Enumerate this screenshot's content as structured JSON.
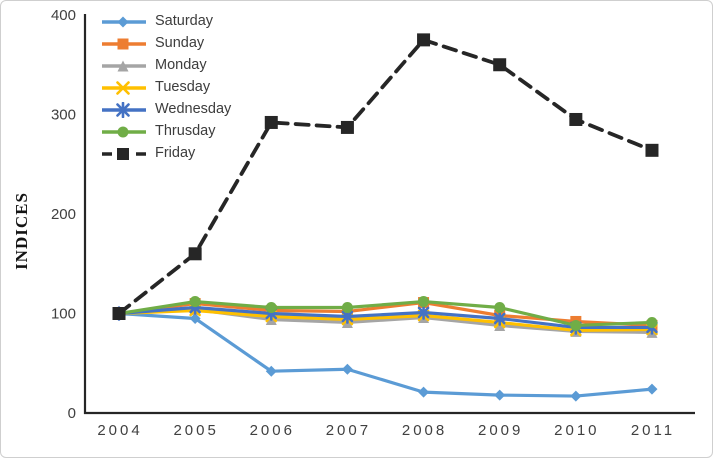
{
  "chart_data": {
    "type": "line",
    "title": "",
    "xlabel": "",
    "ylabel": "INDICES",
    "ylim": [
      0,
      400
    ],
    "yticks": [
      0,
      100,
      200,
      300,
      400
    ],
    "grid": false,
    "legend_position": "top-left",
    "axis_color": "#262626",
    "tick_label_color": "#404040",
    "categories": [
      "2004",
      "2005",
      "2006",
      "2007",
      "2008",
      "2009",
      "2010",
      "2011"
    ],
    "series": [
      {
        "name": "Saturday",
        "color": "#5B9BD5",
        "marker": "diamond",
        "dash": false,
        "values": [
          100,
          95,
          42,
          44,
          21,
          18,
          17,
          24
        ]
      },
      {
        "name": "Sunday",
        "color": "#ED7D31",
        "marker": "square",
        "dash": false,
        "values": [
          100,
          110,
          103,
          102,
          111,
          98,
          92,
          88
        ]
      },
      {
        "name": "Monday",
        "color": "#A5A5A5",
        "marker": "triangle",
        "dash": false,
        "values": [
          100,
          104,
          94,
          91,
          96,
          88,
          82,
          81
        ]
      },
      {
        "name": "Tuesday",
        "color": "#FFC000",
        "marker": "x",
        "dash": false,
        "values": [
          100,
          103,
          97,
          94,
          98,
          91,
          83,
          84
        ]
      },
      {
        "name": "Wednesday",
        "color": "#4472C4",
        "marker": "star",
        "dash": false,
        "values": [
          100,
          106,
          100,
          97,
          101,
          95,
          86,
          86
        ]
      },
      {
        "name": "Thrusday",
        "color": "#70AD47",
        "marker": "circle",
        "dash": false,
        "values": [
          100,
          112,
          106,
          106,
          112,
          106,
          88,
          91
        ]
      },
      {
        "name": "Friday",
        "color": "#262626",
        "marker": "square",
        "dash": true,
        "values": [
          100,
          160,
          292,
          287,
          375,
          350,
          295,
          264
        ]
      }
    ]
  }
}
